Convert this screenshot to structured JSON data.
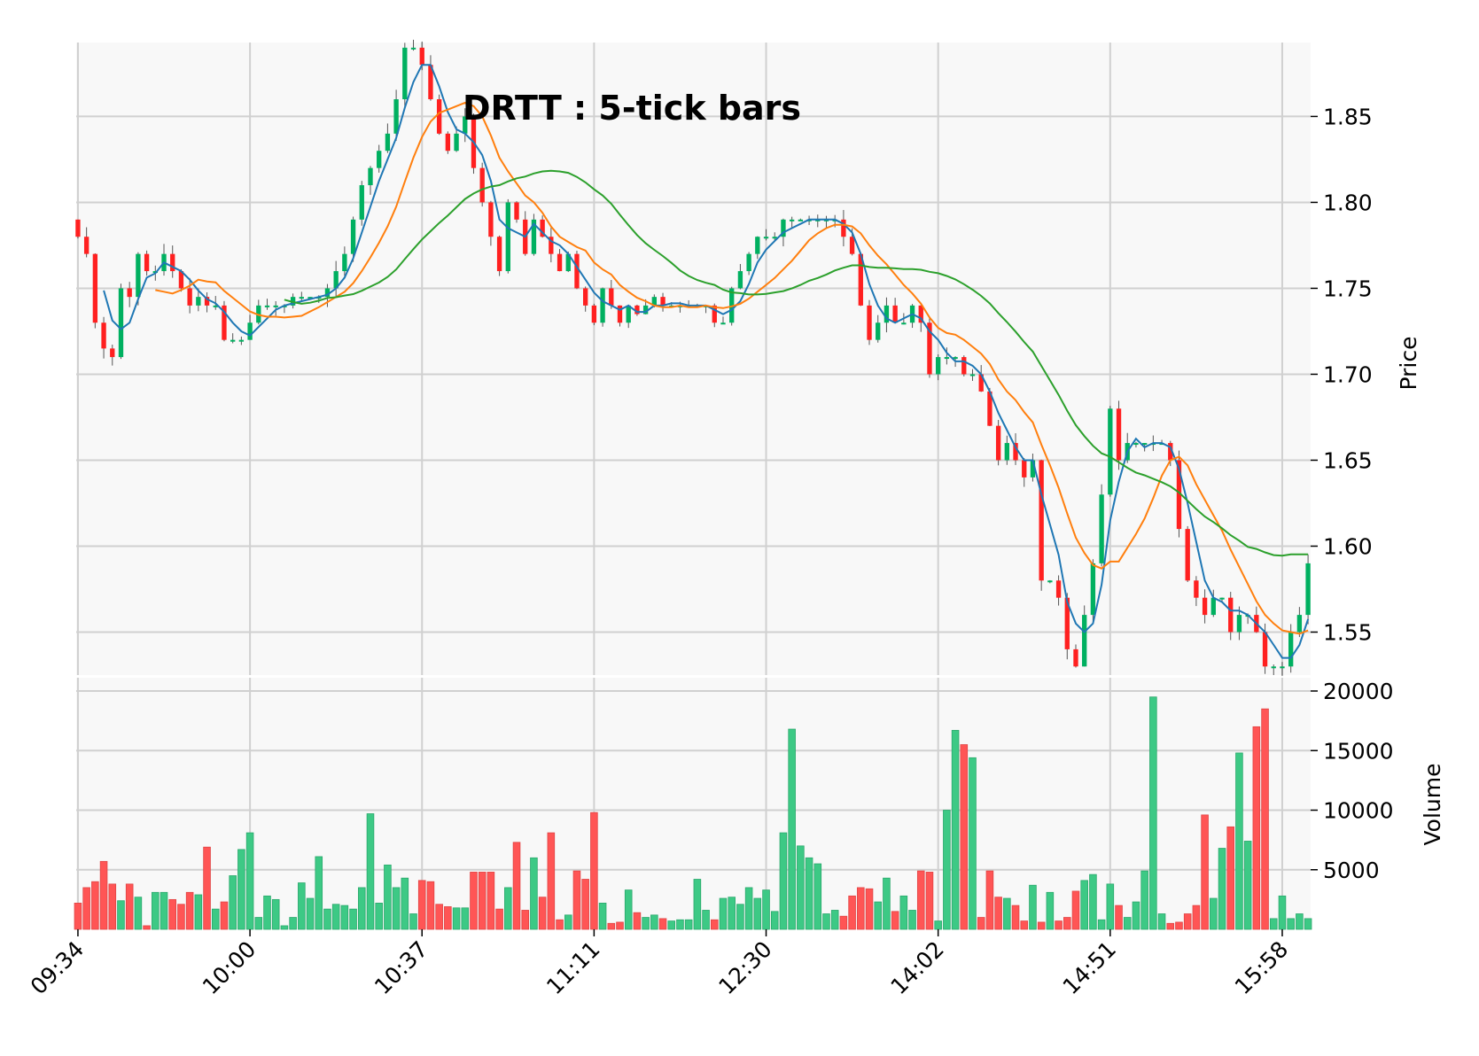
{
  "chart_data": {
    "type": "candlestick",
    "title": "DRTT : 5-tick bars",
    "price_panel": {
      "ylabel": "Price",
      "ylim": [
        1.525,
        1.893
      ],
      "yticks": [
        1.55,
        1.6,
        1.65,
        1.7,
        1.75,
        1.8,
        1.85
      ],
      "ytick_labels": [
        "1.55",
        "1.60",
        "1.65",
        "1.70",
        "1.75",
        "1.80",
        "1.85"
      ],
      "grid": true
    },
    "volume_panel": {
      "ylabel": "Volume",
      "ylim": [
        0,
        20000
      ],
      "yticks": [
        5000,
        10000,
        15000,
        20000
      ],
      "ytick_labels": [
        "5000",
        "10000",
        "15000",
        "20000"
      ],
      "grid": true
    },
    "x_axis": {
      "bar_count": 144,
      "xlim": [
        -0.2,
        143.3
      ],
      "tick_positions": [
        0,
        20,
        40,
        60,
        80,
        100,
        120,
        140
      ],
      "tick_labels": [
        "09:34",
        "10:00",
        "10:37",
        "11:11",
        "12:30",
        "14:02",
        "14:51",
        "15:58"
      ]
    },
    "colors": {
      "up": "#00b060",
      "down": "#ff2020",
      "volume_up": "#3dc985",
      "volume_down": "#ff5555",
      "ma_short": "#1f77b4",
      "ma_mid": "#ff7f0e",
      "ma_long": "#2ca02c",
      "plot_bg": "#f8f8f8",
      "grid": "#d0d0d0"
    },
    "moving_averages": [
      {
        "window": 4,
        "color": "#1f77b4"
      },
      {
        "window": 10,
        "color": "#ff7f0e"
      },
      {
        "window": 25,
        "color": "#2ca02c"
      }
    ],
    "anchors": {
      "close": [
        [
          0,
          1.78
        ],
        [
          1,
          1.77
        ],
        [
          2,
          1.73
        ],
        [
          3,
          1.715
        ],
        [
          4,
          1.71
        ],
        [
          5,
          1.75
        ],
        [
          6,
          1.745
        ],
        [
          7,
          1.77
        ],
        [
          8,
          1.76
        ],
        [
          9,
          1.76
        ],
        [
          10,
          1.77
        ],
        [
          11,
          1.76
        ],
        [
          12,
          1.75
        ],
        [
          13,
          1.74
        ],
        [
          14,
          1.745
        ],
        [
          15,
          1.74
        ],
        [
          16,
          1.74
        ],
        [
          17,
          1.72
        ],
        [
          18,
          1.72
        ],
        [
          19,
          1.72
        ],
        [
          20,
          1.73
        ],
        [
          21,
          1.74
        ],
        [
          22,
          1.74
        ],
        [
          23,
          1.74
        ],
        [
          24,
          1.74
        ],
        [
          25,
          1.745
        ],
        [
          26,
          1.745
        ],
        [
          27,
          1.745
        ],
        [
          28,
          1.745
        ],
        [
          29,
          1.75
        ],
        [
          30,
          1.76
        ],
        [
          31,
          1.77
        ],
        [
          32,
          1.79
        ],
        [
          33,
          1.81
        ],
        [
          34,
          1.82
        ],
        [
          35,
          1.83
        ],
        [
          36,
          1.84
        ],
        [
          37,
          1.86
        ],
        [
          38,
          1.89
        ],
        [
          39,
          1.89
        ],
        [
          40,
          1.88
        ],
        [
          41,
          1.86
        ],
        [
          42,
          1.84
        ],
        [
          43,
          1.83
        ],
        [
          44,
          1.84
        ],
        [
          45,
          1.85
        ],
        [
          46,
          1.82
        ],
        [
          47,
          1.8
        ],
        [
          48,
          1.78
        ],
        [
          49,
          1.76
        ],
        [
          50,
          1.8
        ],
        [
          51,
          1.79
        ],
        [
          52,
          1.77
        ],
        [
          53,
          1.79
        ],
        [
          54,
          1.78
        ],
        [
          55,
          1.77
        ],
        [
          56,
          1.76
        ],
        [
          57,
          1.77
        ],
        [
          58,
          1.75
        ],
        [
          59,
          1.74
        ],
        [
          60,
          1.73
        ],
        [
          61,
          1.75
        ],
        [
          62,
          1.74
        ],
        [
          63,
          1.73
        ],
        [
          64,
          1.74
        ],
        [
          65,
          1.735
        ],
        [
          66,
          1.74
        ],
        [
          67,
          1.745
        ],
        [
          68,
          1.74
        ],
        [
          69,
          1.74
        ],
        [
          70,
          1.74
        ],
        [
          71,
          1.74
        ],
        [
          72,
          1.74
        ],
        [
          73,
          1.74
        ],
        [
          74,
          1.73
        ],
        [
          75,
          1.73
        ],
        [
          76,
          1.75
        ],
        [
          77,
          1.76
        ],
        [
          78,
          1.77
        ],
        [
          79,
          1.78
        ],
        [
          80,
          1.78
        ],
        [
          81,
          1.78
        ],
        [
          82,
          1.79
        ],
        [
          83,
          1.79
        ],
        [
          84,
          1.79
        ],
        [
          85,
          1.79
        ],
        [
          86,
          1.79
        ],
        [
          87,
          1.79
        ],
        [
          88,
          1.79
        ],
        [
          89,
          1.78
        ],
        [
          90,
          1.77
        ],
        [
          91,
          1.74
        ],
        [
          92,
          1.72
        ],
        [
          93,
          1.73
        ],
        [
          94,
          1.74
        ],
        [
          95,
          1.73
        ],
        [
          96,
          1.73
        ],
        [
          97,
          1.74
        ],
        [
          98,
          1.73
        ],
        [
          99,
          1.7
        ],
        [
          100,
          1.71
        ],
        [
          101,
          1.71
        ],
        [
          102,
          1.71
        ],
        [
          103,
          1.7
        ],
        [
          104,
          1.7
        ],
        [
          105,
          1.69
        ],
        [
          106,
          1.67
        ],
        [
          107,
          1.65
        ],
        [
          108,
          1.66
        ],
        [
          109,
          1.65
        ],
        [
          110,
          1.64
        ],
        [
          111,
          1.65
        ],
        [
          112,
          1.58
        ],
        [
          113,
          1.58
        ],
        [
          114,
          1.57
        ],
        [
          115,
          1.54
        ],
        [
          116,
          1.53
        ],
        [
          117,
          1.56
        ],
        [
          118,
          1.59
        ],
        [
          119,
          1.63
        ],
        [
          120,
          1.68
        ],
        [
          121,
          1.65
        ],
        [
          122,
          1.66
        ],
        [
          123,
          1.66
        ],
        [
          124,
          1.66
        ],
        [
          125,
          1.66
        ],
        [
          126,
          1.66
        ],
        [
          127,
          1.65
        ],
        [
          128,
          1.61
        ],
        [
          129,
          1.58
        ],
        [
          130,
          1.57
        ],
        [
          131,
          1.56
        ],
        [
          132,
          1.57
        ],
        [
          133,
          1.57
        ],
        [
          134,
          1.55
        ],
        [
          135,
          1.56
        ],
        [
          136,
          1.56
        ],
        [
          137,
          1.55
        ],
        [
          138,
          1.53
        ],
        [
          139,
          1.53
        ],
        [
          140,
          1.53
        ],
        [
          141,
          1.55
        ],
        [
          142,
          1.56
        ],
        [
          143,
          1.59
        ]
      ],
      "volume": [
        [
          0,
          2200
        ],
        [
          1,
          3500
        ],
        [
          2,
          4000
        ],
        [
          3,
          5700
        ],
        [
          4,
          3800
        ],
        [
          5,
          2400
        ],
        [
          6,
          3800
        ],
        [
          7,
          2700
        ],
        [
          8,
          300
        ],
        [
          9,
          3100
        ],
        [
          10,
          3100
        ],
        [
          11,
          2500
        ],
        [
          12,
          2100
        ],
        [
          13,
          3100
        ],
        [
          14,
          2900
        ],
        [
          15,
          6900
        ],
        [
          16,
          1700
        ],
        [
          17,
          2300
        ],
        [
          18,
          4500
        ],
        [
          19,
          6700
        ],
        [
          20,
          8100
        ],
        [
          21,
          1000
        ],
        [
          22,
          2800
        ],
        [
          23,
          2500
        ],
        [
          24,
          300
        ],
        [
          25,
          1000
        ],
        [
          26,
          3900
        ],
        [
          27,
          2600
        ],
        [
          28,
          6100
        ],
        [
          29,
          1700
        ],
        [
          30,
          2100
        ],
        [
          31,
          2000
        ],
        [
          32,
          1700
        ],
        [
          33,
          3500
        ],
        [
          34,
          9700
        ],
        [
          35,
          2200
        ],
        [
          36,
          5400
        ],
        [
          37,
          3500
        ],
        [
          38,
          4300
        ],
        [
          39,
          1300
        ],
        [
          40,
          4100
        ],
        [
          41,
          4000
        ],
        [
          42,
          2100
        ],
        [
          43,
          1900
        ],
        [
          44,
          1800
        ],
        [
          45,
          1800
        ],
        [
          46,
          4800
        ],
        [
          47,
          4800
        ],
        [
          48,
          4800
        ],
        [
          49,
          1700
        ],
        [
          50,
          3500
        ],
        [
          51,
          7300
        ],
        [
          52,
          1600
        ],
        [
          53,
          6000
        ],
        [
          54,
          2700
        ],
        [
          55,
          8100
        ],
        [
          56,
          800
        ],
        [
          57,
          1200
        ],
        [
          58,
          4900
        ],
        [
          59,
          4200
        ],
        [
          60,
          9800
        ],
        [
          61,
          2200
        ],
        [
          62,
          500
        ],
        [
          63,
          600
        ],
        [
          64,
          3300
        ],
        [
          65,
          1400
        ],
        [
          66,
          1000
        ],
        [
          67,
          1200
        ],
        [
          68,
          900
        ],
        [
          69,
          700
        ],
        [
          70,
          800
        ],
        [
          71,
          800
        ],
        [
          72,
          4200
        ],
        [
          73,
          1600
        ],
        [
          74,
          800
        ],
        [
          75,
          2600
        ],
        [
          76,
          2700
        ],
        [
          77,
          2100
        ],
        [
          78,
          3500
        ],
        [
          79,
          2600
        ],
        [
          80,
          3300
        ],
        [
          81,
          1500
        ],
        [
          82,
          8100
        ],
        [
          83,
          16800
        ],
        [
          84,
          7000
        ],
        [
          85,
          6000
        ],
        [
          86,
          5500
        ],
        [
          87,
          1300
        ],
        [
          88,
          1600
        ],
        [
          89,
          1100
        ],
        [
          90,
          2800
        ],
        [
          91,
          3500
        ],
        [
          92,
          3400
        ],
        [
          93,
          2300
        ],
        [
          94,
          4300
        ],
        [
          95,
          1500
        ],
        [
          96,
          2800
        ],
        [
          97,
          1600
        ],
        [
          98,
          4900
        ],
        [
          99,
          4800
        ],
        [
          100,
          700
        ],
        [
          101,
          10000
        ],
        [
          102,
          16700
        ],
        [
          103,
          15500
        ],
        [
          104,
          14400
        ],
        [
          105,
          1000
        ],
        [
          106,
          4900
        ],
        [
          107,
          2700
        ],
        [
          108,
          2600
        ],
        [
          109,
          2000
        ],
        [
          110,
          700
        ],
        [
          111,
          3700
        ],
        [
          112,
          600
        ],
        [
          113,
          3100
        ],
        [
          114,
          700
        ],
        [
          115,
          1000
        ],
        [
          116,
          3200
        ],
        [
          117,
          4100
        ],
        [
          118,
          4600
        ],
        [
          119,
          800
        ],
        [
          120,
          3800
        ],
        [
          121,
          2000
        ],
        [
          122,
          1000
        ],
        [
          123,
          2300
        ],
        [
          124,
          4900
        ],
        [
          125,
          19500
        ],
        [
          126,
          1300
        ],
        [
          127,
          500
        ],
        [
          128,
          600
        ],
        [
          129,
          1300
        ],
        [
          130,
          2000
        ],
        [
          131,
          9600
        ],
        [
          132,
          2600
        ],
        [
          133,
          6800
        ],
        [
          134,
          8600
        ],
        [
          135,
          14800
        ],
        [
          136,
          7400
        ],
        [
          137,
          17000
        ],
        [
          138,
          18500
        ],
        [
          139,
          900
        ],
        [
          140,
          2800
        ],
        [
          141,
          900
        ],
        [
          142,
          1300
        ],
        [
          143,
          900
        ]
      ]
    }
  }
}
